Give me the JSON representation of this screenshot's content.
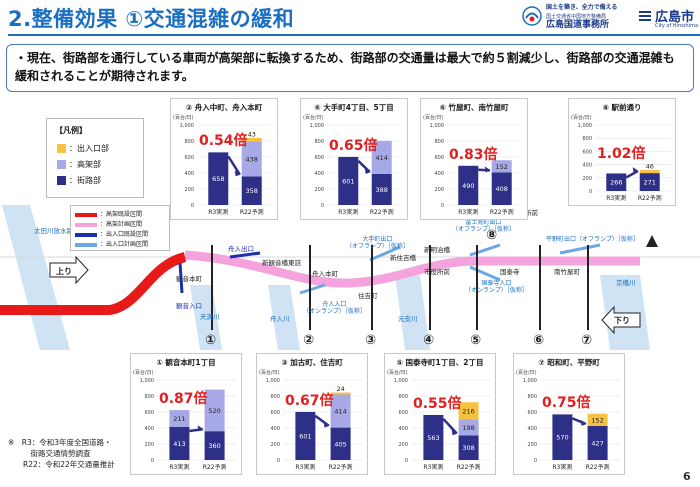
{
  "header": {
    "title": "2.整備効果 ①交通混雑の緩和",
    "slogan": "国土を築き、全力で備える",
    "office_sub": "国土交通省中国地方整備局",
    "office_name": "広島国道事務所",
    "city_name": "広島市",
    "city_sub": "City of Hiroshima"
  },
  "lead": {
    "text": "・現在、街路部を通行している車両が高架部に転換するため、街路部の交通量は最大で約５割減少し、街路部の交通混雑も緩和されることが期待されます。"
  },
  "legend": {
    "title": "【凡例】",
    "items": [
      {
        "label": "：出入口部",
        "color": "#f6c242"
      },
      {
        "label": "：高架部",
        "color": "#a7a8e6"
      },
      {
        "label": "：街路部",
        "color": "#2e2f86"
      }
    ]
  },
  "map_legend": {
    "items": [
      {
        "label": "：高架既設区間",
        "color": "#e81919"
      },
      {
        "label": "：高架計画区間",
        "color": "#f5a3dc"
      },
      {
        "label": "：出入口既設区間",
        "color": "#1d2fb0"
      },
      {
        "label": "：出入口計画区間",
        "color": "#6aa8e8"
      }
    ]
  },
  "map": {
    "labels": [
      {
        "id": "ohtagawa",
        "text": "太田川放水路"
      },
      {
        "id": "kannon",
        "text": "観音本町"
      },
      {
        "id": "kannon-entrance",
        "text": "観音入口"
      },
      {
        "id": "tenma",
        "text": "天満川"
      },
      {
        "id": "funairi-exit",
        "text": "舟入出口"
      },
      {
        "id": "shin-kannon",
        "text": "新観音橋東詰"
      },
      {
        "id": "funairi-honmachi",
        "text": "舟入本町"
      },
      {
        "id": "funairi-river",
        "text": "舟入川"
      },
      {
        "id": "funairi-entrance",
        "text": "舟入入口\n（オンランプ）［仮称］"
      },
      {
        "id": "sumiyoshi",
        "text": "住吉町"
      },
      {
        "id": "otemachi-exit",
        "text": "大手町出口\n（オフランプ）［仮称］"
      },
      {
        "id": "shin-sumiyoshi",
        "text": "新住吉橋"
      },
      {
        "id": "motoyasu",
        "text": "元安川"
      },
      {
        "id": "shin-sakai",
        "text": "新明治橋"
      },
      {
        "id": "shiyakusho",
        "text": "市役所前"
      },
      {
        "id": "fujimi-exit",
        "text": "富士見町出口\n（オフランプ）［仮称］"
      },
      {
        "id": "kokutaiji",
        "text": "国泰寺"
      },
      {
        "id": "kokutaiji-entrance",
        "text": "国泰寺入口\n（オンランプ）［仮称］"
      },
      {
        "id": "hoken",
        "text": "保健所前"
      },
      {
        "id": "minami-takeya",
        "text": "南竹屋町"
      },
      {
        "id": "hiranomachi-exit",
        "text": "平野町出口（オフランプ）［仮称］"
      },
      {
        "id": "kyobashi",
        "text": "京橋川"
      },
      {
        "id": "up",
        "text": "上り"
      },
      {
        "id": "down",
        "text": "下り"
      }
    ],
    "points": [
      "①",
      "②",
      "③",
      "④",
      "⑤",
      "⑥",
      "⑦",
      "⑧"
    ]
  },
  "panels": [
    {
      "id": "p2",
      "title": "② 舟入中町、舟入本町",
      "ratio": "0.54倍",
      "r3": [
        658,
        0,
        0
      ],
      "r22": [
        358,
        438,
        43
      ]
    },
    {
      "id": "p4",
      "title": "④ 大手町4丁目、5丁目",
      "ratio": "0.65倍",
      "r3": [
        601,
        0,
        0
      ],
      "r22": [
        388,
        414,
        0
      ]
    },
    {
      "id": "p6",
      "title": "⑥ 竹屋町、南竹屋町",
      "ratio": "0.83倍",
      "r3": [
        490,
        0,
        0
      ],
      "r22": [
        408,
        152,
        0
      ]
    },
    {
      "id": "p8",
      "title": "⑧ 駅前通り",
      "ratio": "1.02倍",
      "r3": [
        266,
        0,
        0
      ],
      "r22": [
        271,
        0,
        46
      ]
    },
    {
      "id": "p1",
      "title": "① 観音本町1丁目",
      "ratio": "0.87倍",
      "r3": [
        413,
        211,
        0
      ],
      "r22": [
        360,
        520,
        0
      ]
    },
    {
      "id": "p3",
      "title": "③ 加古町、住吉町",
      "ratio": "0.67倍",
      "r3": [
        601,
        0,
        0
      ],
      "r22": [
        405,
        414,
        24
      ]
    },
    {
      "id": "p5",
      "title": "⑤ 国泰寺町1丁目、2丁目",
      "ratio": "0.55倍",
      "r3": [
        563,
        0,
        0
      ],
      "r22": [
        308,
        198,
        216
      ]
    },
    {
      "id": "p7",
      "title": "⑦ 昭和町、平野町",
      "ratio": "0.75倍",
      "r3": [
        570,
        0,
        0
      ],
      "r22": [
        427,
        0,
        152
      ]
    }
  ],
  "axis": {
    "unit": "(百台/日)",
    "ticks": [
      "1,000",
      "800",
      "600",
      "400",
      "200",
      "0"
    ],
    "cat1": "R3実測",
    "cat22": "R22予測"
  },
  "note": {
    "line1": "※　R3：令和3年度全国道路・",
    "line2": "　　　街路交通情勢調査",
    "line3": "　　R22：令和22年交通量推計"
  },
  "page_number": "6",
  "chart_data": [
    {
      "type": "bar",
      "title": "② 舟入中町、舟入本町",
      "categories": [
        "R3実測",
        "R22予測"
      ],
      "series": [
        {
          "name": "：街路部",
          "values": [
            658,
            358
          ]
        },
        {
          "name": "：高架部",
          "values": [
            0,
            438
          ]
        },
        {
          "name": "：出入口部",
          "values": [
            0,
            43
          ]
        }
      ],
      "ylim": [
        0,
        1000
      ],
      "ylabel": "(百台/日)"
    },
    {
      "type": "bar",
      "title": "④ 大手町4丁目、5丁目",
      "categories": [
        "R3実測",
        "R22予測"
      ],
      "series": [
        {
          "name": "：街路部",
          "values": [
            601,
            388
          ]
        },
        {
          "name": "：高架部",
          "values": [
            0,
            414
          ]
        },
        {
          "name": "：出入口部",
          "values": [
            0,
            0
          ]
        }
      ],
      "ylim": [
        0,
        1000
      ],
      "ylabel": "(百台/日)"
    },
    {
      "type": "bar",
      "title": "⑥ 竹屋町、南竹屋町",
      "categories": [
        "R3実測",
        "R22予測"
      ],
      "series": [
        {
          "name": "：街路部",
          "values": [
            490,
            408
          ]
        },
        {
          "name": "：高架部",
          "values": [
            0,
            152
          ]
        },
        {
          "name": "：出入口部",
          "values": [
            0,
            0
          ]
        }
      ],
      "ylim": [
        0,
        1000
      ],
      "ylabel": "(百台/日)"
    },
    {
      "type": "bar",
      "title": "⑧ 駅前通り",
      "categories": [
        "R3実測",
        "R22予測"
      ],
      "series": [
        {
          "name": "：街路部",
          "values": [
            266,
            271
          ]
        },
        {
          "name": "：高架部",
          "values": [
            0,
            0
          ]
        },
        {
          "name": "：出入口部",
          "values": [
            0,
            46
          ]
        }
      ],
      "ylim": [
        0,
        1000
      ],
      "ylabel": "(百台/日)"
    },
    {
      "type": "bar",
      "title": "① 観音本町1丁目",
      "categories": [
        "R3実測",
        "R22予測"
      ],
      "series": [
        {
          "name": "：街路部",
          "values": [
            413,
            360
          ]
        },
        {
          "name": "：高架部",
          "values": [
            211,
            520
          ]
        },
        {
          "name": "：出入口部",
          "values": [
            0,
            0
          ]
        }
      ],
      "ylim": [
        0,
        1000
      ],
      "ylabel": "(百台/日)"
    },
    {
      "type": "bar",
      "title": "③ 加古町、住吉町",
      "categories": [
        "R3実測",
        "R22予測"
      ],
      "series": [
        {
          "name": "：街路部",
          "values": [
            601,
            405
          ]
        },
        {
          "name": "：高架部",
          "values": [
            0,
            414
          ]
        },
        {
          "name": "：出入口部",
          "values": [
            0,
            24
          ]
        }
      ],
      "ylim": [
        0,
        1000
      ],
      "ylabel": "(百台/日)"
    },
    {
      "type": "bar",
      "title": "⑤ 国泰寺町1丁目、2丁目",
      "categories": [
        "R3実測",
        "R22予測"
      ],
      "series": [
        {
          "name": "：街路部",
          "values": [
            563,
            308
          ]
        },
        {
          "name": "：高架部",
          "values": [
            0,
            198
          ]
        },
        {
          "name": "：出入口部",
          "values": [
            0,
            216
          ]
        }
      ],
      "ylim": [
        0,
        1000
      ],
      "ylabel": "(百台/日)"
    },
    {
      "type": "bar",
      "title": "⑦ 昭和町、平野町",
      "categories": [
        "R3実測",
        "R22予測"
      ],
      "series": [
        {
          "name": "：街路部",
          "values": [
            570,
            427
          ]
        },
        {
          "name": "：高架部",
          "values": [
            0,
            0
          ]
        },
        {
          "name": "：出入口部",
          "values": [
            0,
            152
          ]
        }
      ],
      "ylim": [
        0,
        1000
      ],
      "ylabel": "(百台/日)"
    }
  ]
}
